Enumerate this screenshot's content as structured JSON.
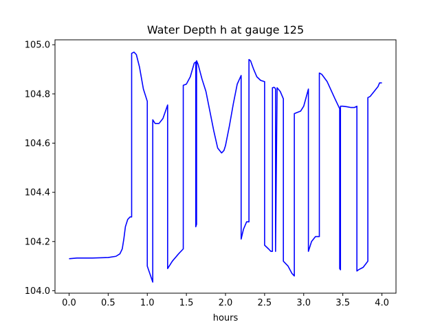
{
  "chart_data": {
    "type": "line",
    "title": "Water Depth h at gauge 125",
    "xlabel": "hours",
    "ylabel": "",
    "xlim": [
      -0.18,
      4.18
    ],
    "ylim": [
      103.99,
      105.02
    ],
    "xticks": [
      "0.0",
      "0.5",
      "1.0",
      "1.5",
      "2.0",
      "2.5",
      "3.0",
      "3.5",
      "4.0"
    ],
    "yticks": [
      "104.0",
      "104.2",
      "104.4",
      "104.6",
      "104.8",
      "105.0"
    ],
    "grid": false,
    "legend": "none",
    "series": [
      {
        "color": "#0000ff",
        "x": [
          0.0,
          0.1,
          0.3,
          0.5,
          0.6,
          0.65,
          0.68,
          0.7,
          0.72,
          0.75,
          0.78,
          0.8,
          0.8,
          0.83,
          0.86,
          0.9,
          0.95,
          1.0,
          1.0,
          1.07,
          1.07,
          1.1,
          1.15,
          1.2,
          1.26,
          1.26,
          1.32,
          1.4,
          1.46,
          1.46,
          1.5,
          1.55,
          1.6,
          1.62,
          1.62,
          1.63,
          1.63,
          1.65,
          1.7,
          1.75,
          1.8,
          1.85,
          1.9,
          1.95,
          1.98,
          2.0,
          2.05,
          2.1,
          2.15,
          2.2,
          2.2,
          2.23,
          2.27,
          2.3,
          2.3,
          2.32,
          2.36,
          2.4,
          2.45,
          2.5,
          2.5,
          2.55,
          2.58,
          2.6,
          2.6,
          2.62,
          2.63,
          2.64,
          2.64,
          2.66,
          2.7,
          2.74,
          2.74,
          2.8,
          2.85,
          2.88,
          2.88,
          2.92,
          2.96,
          3.0,
          3.06,
          3.06,
          3.1,
          3.15,
          3.2,
          3.2,
          3.23,
          3.3,
          3.4,
          3.46,
          3.46,
          3.47,
          3.47,
          3.5,
          3.55,
          3.6,
          3.65,
          3.68,
          3.68,
          3.7,
          3.76,
          3.82,
          3.82,
          3.85,
          3.9,
          3.95,
          3.97,
          4.0
        ],
        "y": [
          104.13,
          104.133,
          104.133,
          104.135,
          104.14,
          104.15,
          104.17,
          104.21,
          104.26,
          104.29,
          104.3,
          104.3,
          104.965,
          104.97,
          104.96,
          104.91,
          104.82,
          104.77,
          104.1,
          104.035,
          104.695,
          104.68,
          104.68,
          104.7,
          104.755,
          104.09,
          104.12,
          104.15,
          104.17,
          104.835,
          104.84,
          104.87,
          104.925,
          104.93,
          104.26,
          104.27,
          104.935,
          104.92,
          104.86,
          104.81,
          104.73,
          104.65,
          104.58,
          104.56,
          104.57,
          104.59,
          104.67,
          104.76,
          104.84,
          104.875,
          104.21,
          104.25,
          104.28,
          104.28,
          104.94,
          104.935,
          104.9,
          104.87,
          104.855,
          104.85,
          104.185,
          104.17,
          104.16,
          104.16,
          104.825,
          104.827,
          104.825,
          104.82,
          104.16,
          104.825,
          104.81,
          104.78,
          104.12,
          104.1,
          104.07,
          104.06,
          104.72,
          104.725,
          104.73,
          104.75,
          104.82,
          104.16,
          104.2,
          104.22,
          104.22,
          104.885,
          104.88,
          104.85,
          104.78,
          104.74,
          104.09,
          104.085,
          104.75,
          104.75,
          104.748,
          104.745,
          104.745,
          104.75,
          104.08,
          104.085,
          104.095,
          104.12,
          104.785,
          104.79,
          104.81,
          104.83,
          104.845,
          104.845
        ]
      }
    ]
  }
}
